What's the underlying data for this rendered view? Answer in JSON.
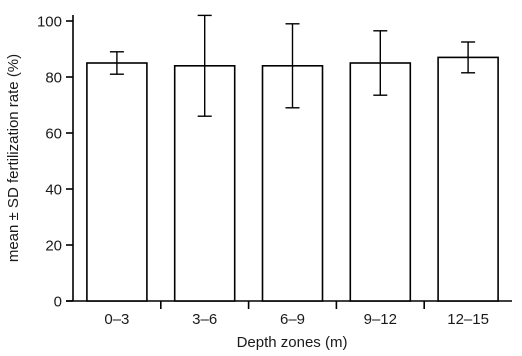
{
  "chart_data": {
    "type": "bar",
    "xlabel": "Depth zones (m)",
    "ylabel": "mean ± SD fertilization rate (%)",
    "ylim": [
      0,
      100
    ],
    "yticks": [
      0,
      20,
      40,
      60,
      80,
      100
    ],
    "categories": [
      "0–3",
      "3–6",
      "6–9",
      "9–12",
      "12–15"
    ],
    "values": [
      85,
      84,
      84,
      85,
      87
    ],
    "error": [
      4,
      18,
      15,
      11.5,
      5.5
    ],
    "grid": false,
    "colors": {
      "bar_fill": "#ffffff",
      "stroke": "#000000"
    }
  }
}
